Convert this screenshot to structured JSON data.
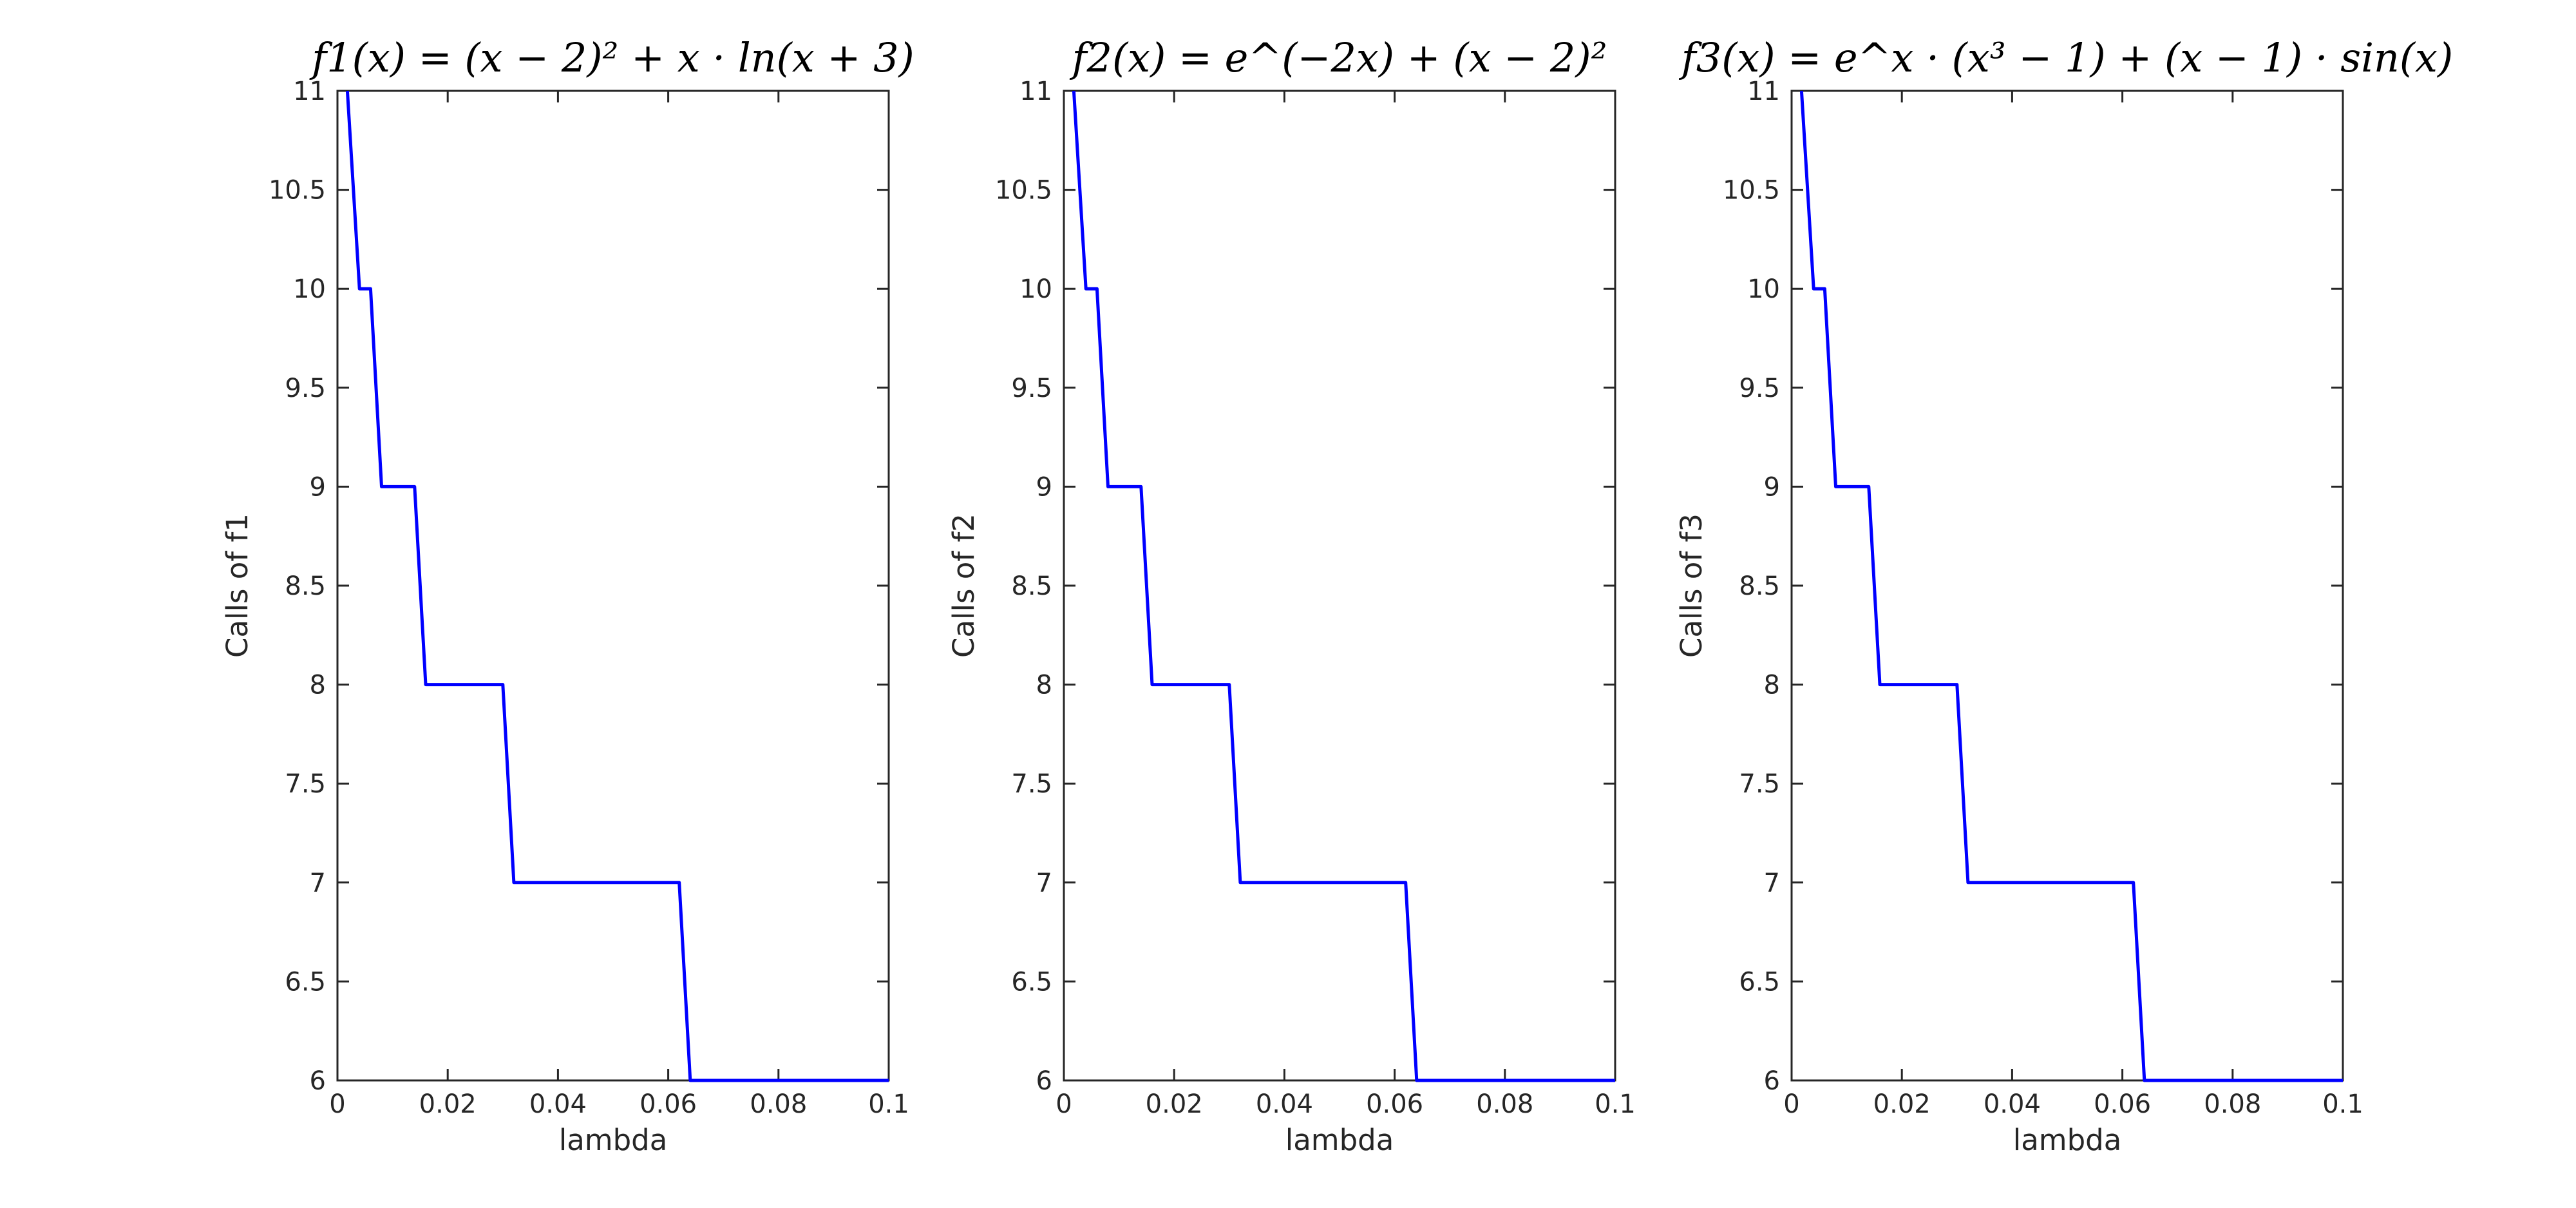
{
  "page": {
    "background": "#ffffff"
  },
  "chart_data": [
    {
      "type": "line",
      "title": "f1(x) = (x − 2)² + x · ln(x + 3)",
      "xlabel": "lambda",
      "ylabel": "Calls of f1",
      "xlim": [
        0,
        0.1
      ],
      "ylim": [
        6,
        11
      ],
      "x_ticks": [
        "0",
        "0.02",
        "0.04",
        "0.06",
        "0.08",
        "0.1"
      ],
      "y_ticks": [
        "6",
        "6.5",
        "7",
        "7.5",
        "8",
        "8.5",
        "9",
        "9.5",
        "10",
        "10.5",
        "11"
      ],
      "series": [
        {
          "color": "#0000ff",
          "x": [
            0.0018,
            0.004,
            0.006,
            0.008,
            0.014,
            0.016,
            0.03,
            0.032,
            0.062,
            0.064,
            0.1
          ],
          "values": [
            11,
            10,
            10,
            9,
            9,
            8,
            8,
            7,
            7,
            6,
            6
          ]
        }
      ],
      "grid": false,
      "legend": "none"
    },
    {
      "type": "line",
      "title": "f2(x) = e^(−2x) + (x − 2)²",
      "xlabel": "lambda",
      "ylabel": "Calls of f2",
      "xlim": [
        0,
        0.1
      ],
      "ylim": [
        6,
        11
      ],
      "x_ticks": [
        "0",
        "0.02",
        "0.04",
        "0.06",
        "0.08",
        "0.1"
      ],
      "y_ticks": [
        "6",
        "6.5",
        "7",
        "7.5",
        "8",
        "8.5",
        "9",
        "9.5",
        "10",
        "10.5",
        "11"
      ],
      "series": [
        {
          "color": "#0000ff",
          "x": [
            0.0018,
            0.004,
            0.006,
            0.008,
            0.014,
            0.016,
            0.03,
            0.032,
            0.062,
            0.064,
            0.1
          ],
          "values": [
            11,
            10,
            10,
            9,
            9,
            8,
            8,
            7,
            7,
            6,
            6
          ]
        }
      ],
      "grid": false,
      "legend": "none"
    },
    {
      "type": "line",
      "title": "f3(x) = e^x · (x³ − 1) + (x − 1) · sin(x)",
      "xlabel": "lambda",
      "ylabel": "Calls of f3",
      "xlim": [
        0,
        0.1
      ],
      "ylim": [
        6,
        11
      ],
      "x_ticks": [
        "0",
        "0.02",
        "0.04",
        "0.06",
        "0.08",
        "0.1"
      ],
      "y_ticks": [
        "6",
        "6.5",
        "7",
        "7.5",
        "8",
        "8.5",
        "9",
        "9.5",
        "10",
        "10.5",
        "11"
      ],
      "series": [
        {
          "color": "#0000ff",
          "x": [
            0.0018,
            0.004,
            0.006,
            0.008,
            0.014,
            0.016,
            0.03,
            0.032,
            0.062,
            0.064,
            0.1
          ],
          "values": [
            11,
            10,
            10,
            9,
            9,
            8,
            8,
            7,
            7,
            6,
            6
          ]
        }
      ],
      "grid": false,
      "legend": "none"
    }
  ]
}
